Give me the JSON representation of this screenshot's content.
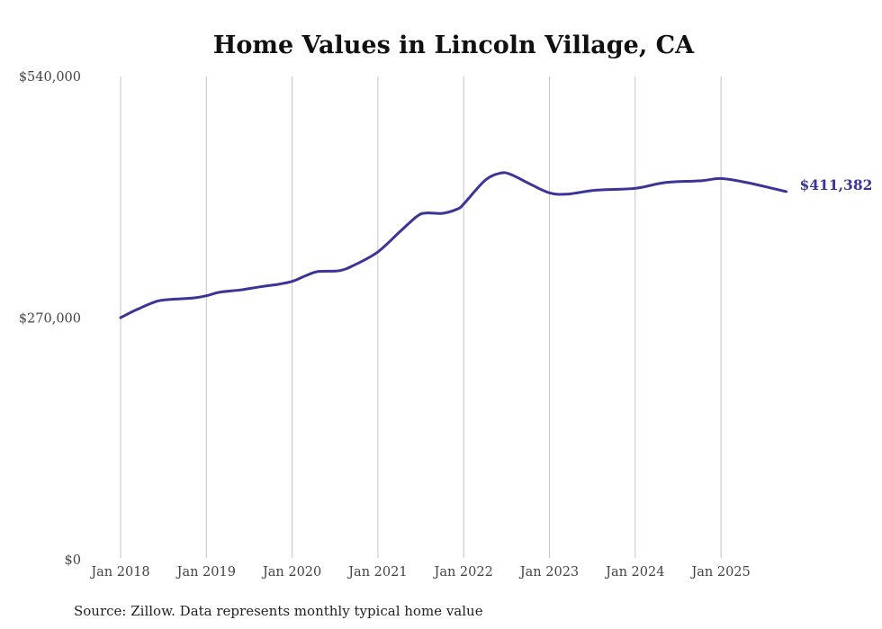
{
  "chart_data": {
    "type": "line",
    "title": "Home Values in Lincoln Village, CA",
    "xlabel": "",
    "ylabel": "",
    "source": "Source: Zillow. Data represents monthly typical home value",
    "ylim": [
      0,
      540000
    ],
    "yticks": [
      0,
      270000,
      540000
    ],
    "ytick_labels": [
      "$0",
      "$270,000",
      "$540,000"
    ],
    "xlim": [
      2018,
      2025.75
    ],
    "xticks": [
      2018,
      2019,
      2020,
      2021,
      2022,
      2023,
      2024,
      2025
    ],
    "xtick_labels": [
      "Jan 2018",
      "Jan 2019",
      "Jan 2020",
      "Jan 2021",
      "Jan 2022",
      "Jan 2023",
      "Jan 2024",
      "Jan 2025"
    ],
    "grid": "vertical",
    "line_color": "#3a3597",
    "end_label": "$411,382",
    "series": [
      {
        "name": "Typical home value",
        "x": [
          2018.0,
          2018.2,
          2018.43,
          2018.6,
          2018.85,
          2019.0,
          2019.16,
          2019.4,
          2019.63,
          2019.85,
          2020.0,
          2020.15,
          2020.3,
          2020.55,
          2020.73,
          2021.0,
          2021.25,
          2021.46,
          2021.57,
          2021.75,
          2021.93,
          2022.0,
          2022.25,
          2022.43,
          2022.55,
          2022.78,
          2023.0,
          2023.2,
          2023.55,
          2024.0,
          2024.35,
          2024.77,
          2025.0,
          2025.3,
          2025.6,
          2025.76
        ],
        "values": [
          270500,
          280000,
          289000,
          291000,
          292500,
          295000,
          299000,
          301500,
          305000,
          308000,
          311000,
          317000,
          322000,
          323000,
          329500,
          344000,
          366000,
          384000,
          387500,
          387000,
          392000,
          397500,
          424000,
          432000,
          430500,
          419500,
          410000,
          408500,
          413000,
          415000,
          421500,
          423500,
          426000,
          421500,
          415000,
          411382
        ]
      }
    ]
  }
}
